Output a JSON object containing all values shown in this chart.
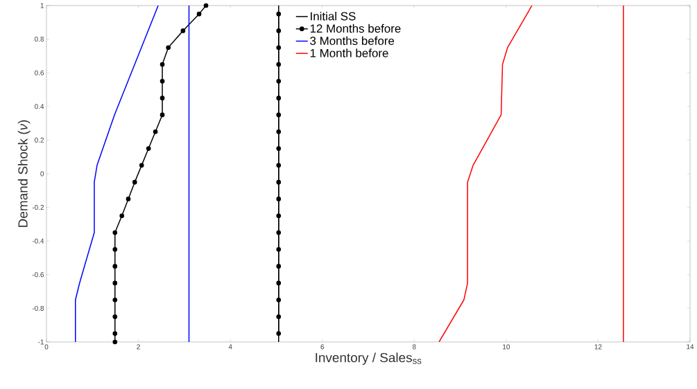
{
  "chart_data": {
    "type": "line",
    "xlabel": "Inventory / Sales$_{ss}$",
    "ylabel": "Demand Shock (*ν*)",
    "xlim": [
      0,
      14
    ],
    "ylim": [
      -1,
      1
    ],
    "xticks": [
      0,
      2,
      4,
      6,
      8,
      10,
      12,
      14
    ],
    "yticks": [
      -1,
      -0.8,
      -0.6,
      -0.4,
      -0.2,
      0,
      0.2,
      0.4,
      0.6,
      0.8,
      1
    ],
    "grid": false,
    "legend": "top",
    "series": [
      {
        "name": "Initial SS",
        "color": "#000000",
        "marker": "none",
        "x": [
          5.05,
          5.05
        ],
        "values": [
          -1,
          1
        ]
      },
      {
        "name": "12 Months before",
        "color": "#000000",
        "marker": "circle",
        "x": [
          1.49,
          1.49,
          1.49,
          1.49,
          1.49,
          1.49,
          1.49,
          1.49,
          1.64,
          1.78,
          1.92,
          2.07,
          2.22,
          2.37,
          2.52,
          2.52,
          2.52,
          2.52,
          2.65,
          2.97,
          3.32,
          3.47
        ],
        "values": [
          -1,
          -0.95,
          -0.85,
          -0.75,
          -0.65,
          -0.55,
          -0.45,
          -0.35,
          -0.25,
          -0.15,
          -0.05,
          0.05,
          0.15,
          0.25,
          0.35,
          0.45,
          0.55,
          0.65,
          0.75,
          0.85,
          0.95,
          1
        ]
      },
      {
        "name": "3 Months before",
        "color": "#0000ff",
        "marker": "none",
        "x": [
          0.63,
          0.63,
          0.72,
          1.04,
          1.04,
          1.1,
          1.48,
          2.43
        ],
        "values": [
          -1,
          -0.75,
          -0.65,
          -0.35,
          -0.05,
          0.05,
          0.35,
          1
        ]
      },
      {
        "name": "1 Month before",
        "color": "#ff0000",
        "marker": "none",
        "x": [
          8.54,
          9.08,
          9.16,
          9.16,
          9.28,
          9.89,
          9.92,
          10.03,
          10.56
        ],
        "values": [
          -1,
          -0.75,
          -0.65,
          -0.05,
          0.05,
          0.35,
          0.65,
          0.75,
          1
        ]
      },
      {
        "color": "#000000",
        "marker": "circle",
        "x": [
          5.05,
          5.05,
          5.05,
          5.05,
          5.05,
          5.05,
          5.05,
          5.05,
          5.05,
          5.05,
          5.05,
          5.05,
          5.05,
          5.05,
          5.05,
          5.05,
          5.05,
          5.05,
          5.05,
          5.05
        ],
        "values": [
          -0.95,
          -0.85,
          -0.75,
          -0.65,
          -0.55,
          -0.45,
          -0.35,
          -0.25,
          -0.15,
          -0.05,
          0.05,
          0.15,
          0.25,
          0.35,
          0.45,
          0.55,
          0.65,
          0.75,
          0.85,
          0.95
        ]
      }
    ],
    "ref_lines": [
      {
        "axis": "x",
        "value": 3.1,
        "color": "#0000ff"
      },
      {
        "axis": "x",
        "value": 12.55,
        "color": "#ff0000"
      }
    ]
  }
}
